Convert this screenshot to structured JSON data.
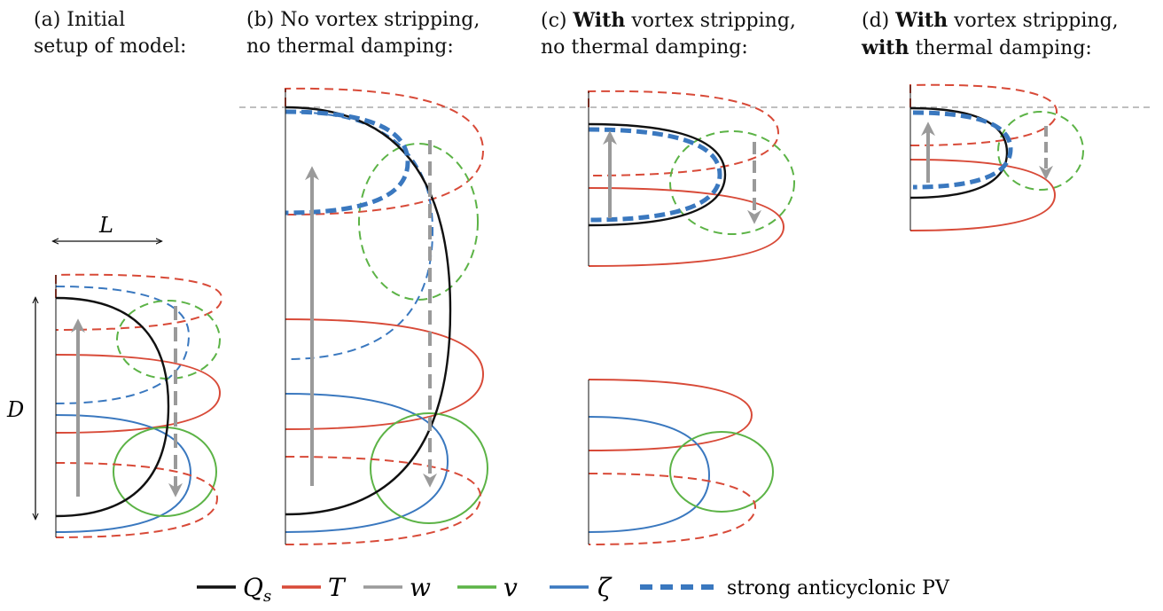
{
  "panels": [
    {
      "id": "a",
      "line1": "(a) Initial",
      "line2": "setup of model:"
    },
    {
      "id": "b",
      "line1": "(b) No vortex stripping,",
      "line2": "no thermal damping:"
    },
    {
      "id": "c",
      "line1_prefix": "(c) ",
      "line1_bold": "With",
      "line1_rest": " vortex stripping,",
      "line2": "no thermal damping:"
    },
    {
      "id": "d",
      "line1_prefix": "(d) ",
      "line1_bold": "With",
      "line1_rest": " vortex stripping,",
      "line2_bold": "with",
      "line2_rest": " thermal damping:"
    }
  ],
  "dimension_labels": {
    "width": "L",
    "depth": "D"
  },
  "legend": {
    "items": [
      {
        "symbol": "Q",
        "subscript": "s",
        "color": "#111111",
        "style": "solid"
      },
      {
        "symbol": "T",
        "color": "#d84a38",
        "style": "solid"
      },
      {
        "symbol": "w",
        "color": "#9a9a9a",
        "style": "solid"
      },
      {
        "symbol": "v",
        "color": "#5cb346",
        "style": "solid"
      },
      {
        "symbol": "ζ",
        "color": "#3a78bf",
        "style": "solid"
      },
      {
        "label": "strong anticyclonic PV",
        "color": "#3a78bf",
        "style": "thick-dashed"
      }
    ]
  },
  "colors": {
    "Qs": "#111111",
    "T": "#d84a38",
    "w": "#9a9a9a",
    "v": "#5cb346",
    "zeta": "#3a78bf",
    "reference": "#aaaaaa"
  }
}
